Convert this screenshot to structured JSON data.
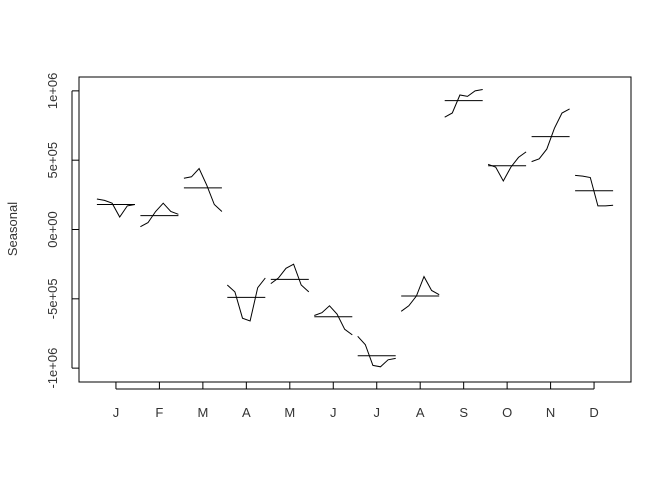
{
  "chart_data": {
    "type": "line",
    "title": "",
    "xlabel": "",
    "ylabel": "Seasonal",
    "ylim": [
      -1100000,
      1100000
    ],
    "yticks": [
      {
        "value": -1000000,
        "label": "-1e+06"
      },
      {
        "value": -500000,
        "label": "-5e+05"
      },
      {
        "value": 0,
        "label": "0e+00"
      },
      {
        "value": 500000,
        "label": "5e+05"
      },
      {
        "value": 1000000,
        "label": "1e+06"
      }
    ],
    "categories": [
      "J",
      "F",
      "M",
      "A",
      "M",
      "J",
      "J",
      "A",
      "S",
      "O",
      "N",
      "D"
    ],
    "grid": false,
    "legend": "none",
    "line_color": "#000000",
    "subseries": [
      {
        "mean": 180000,
        "values": [
          220000,
          210000,
          190000,
          90000,
          170000,
          180000
        ]
      },
      {
        "mean": 100000,
        "values": [
          20000,
          50000,
          130000,
          190000,
          130000,
          110000
        ]
      },
      {
        "mean": 300000,
        "values": [
          370000,
          380000,
          440000,
          320000,
          180000,
          130000
        ]
      },
      {
        "mean": -490000,
        "values": [
          -400000,
          -450000,
          -640000,
          -660000,
          -420000,
          -350000
        ]
      },
      {
        "mean": -360000,
        "values": [
          -390000,
          -350000,
          -280000,
          -250000,
          -400000,
          -450000
        ]
      },
      {
        "mean": -630000,
        "values": [
          -620000,
          -600000,
          -550000,
          -610000,
          -720000,
          -760000
        ]
      },
      {
        "mean": -910000,
        "values": [
          -770000,
          -830000,
          -980000,
          -990000,
          -940000,
          -930000
        ]
      },
      {
        "mean": -480000,
        "values": [
          -590000,
          -550000,
          -480000,
          -340000,
          -440000,
          -470000
        ]
      },
      {
        "mean": 930000,
        "values": [
          810000,
          840000,
          970000,
          960000,
          1000000,
          1010000
        ]
      },
      {
        "mean": 460000,
        "values": [
          470000,
          450000,
          350000,
          450000,
          520000,
          560000
        ]
      },
      {
        "mean": 670000,
        "values": [
          490000,
          510000,
          580000,
          730000,
          840000,
          870000
        ]
      },
      {
        "mean": 280000,
        "values": [
          390000,
          385000,
          375000,
          170000,
          170000,
          175000
        ]
      }
    ]
  }
}
